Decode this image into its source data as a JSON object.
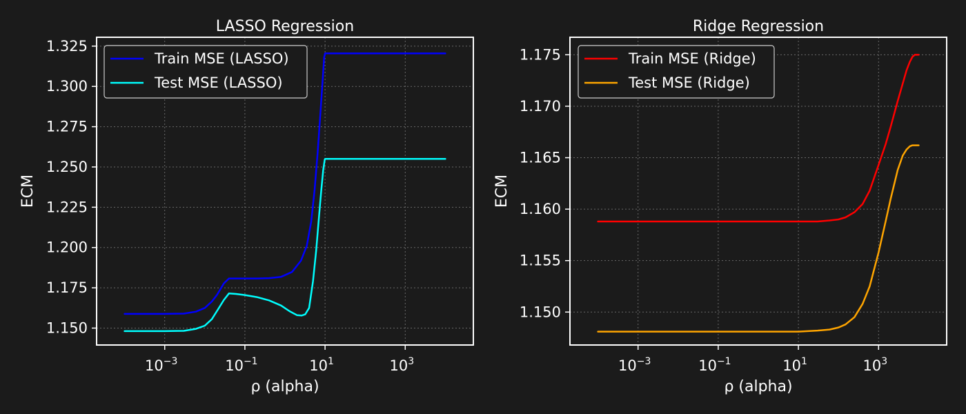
{
  "figure": {
    "background": "#1b1b1b",
    "grid_color": "#6a6a6a",
    "text_color": "#ffffff"
  },
  "chart_data": [
    {
      "id": "lasso",
      "type": "line",
      "title": "LASSO Regression",
      "xlabel": "ρ (alpha)",
      "ylabel": "ECM",
      "xscale": "log",
      "xlim": [
        2e-05,
        50000
      ],
      "ylim": [
        1.1395,
        1.3305
      ],
      "xticks": [
        {
          "value": 0.001,
          "base": "10",
          "exp": "−3"
        },
        {
          "value": 0.1,
          "base": "10",
          "exp": "−1"
        },
        {
          "value": 10,
          "base": "10",
          "exp": "1"
        },
        {
          "value": 1000,
          "base": "10",
          "exp": "3"
        }
      ],
      "yticks": [
        {
          "value": 1.15,
          "label": "1.150"
        },
        {
          "value": 1.175,
          "label": "1.175"
        },
        {
          "value": 1.2,
          "label": "1.200"
        },
        {
          "value": 1.225,
          "label": "1.225"
        },
        {
          "value": 1.25,
          "label": "1.250"
        },
        {
          "value": 1.275,
          "label": "1.275"
        },
        {
          "value": 1.3,
          "label": "1.300"
        },
        {
          "value": 1.325,
          "label": "1.325"
        }
      ],
      "grid": true,
      "legend_position": "top-left",
      "series": [
        {
          "name": "Train MSE (LASSO)",
          "color": "#0000ff",
          "x": [
            0.0001,
            0.001,
            0.003,
            0.006,
            0.01,
            0.015,
            0.02,
            0.03,
            0.04,
            0.06,
            0.1,
            0.2,
            0.4,
            0.8,
            1.5,
            2.5,
            3.5,
            4.5,
            5.5,
            6.5,
            7.5,
            8.5,
            9.5,
            10,
            100,
            1000,
            10000
          ],
          "values": [
            1.1588,
            1.1588,
            1.159,
            1.1602,
            1.1625,
            1.1665,
            1.1705,
            1.1778,
            1.1808,
            1.1808,
            1.1808,
            1.1808,
            1.181,
            1.1818,
            1.1848,
            1.1918,
            1.201,
            1.216,
            1.236,
            1.258,
            1.28,
            1.3,
            1.318,
            1.3205,
            1.3205,
            1.3205,
            1.3205
          ]
        },
        {
          "name": "Test MSE (LASSO)",
          "color": "#00ffff",
          "x": [
            0.0001,
            0.001,
            0.003,
            0.006,
            0.01,
            0.015,
            0.02,
            0.03,
            0.04,
            0.06,
            0.1,
            0.2,
            0.4,
            0.8,
            1.3,
            2,
            2.6,
            3.2,
            4,
            5,
            6,
            7,
            8,
            9,
            9.8,
            10,
            100,
            1000,
            10000
          ],
          "values": [
            1.1481,
            1.1481,
            1.1483,
            1.1495,
            1.1515,
            1.1555,
            1.1605,
            1.1675,
            1.1715,
            1.1712,
            1.1705,
            1.1692,
            1.1672,
            1.164,
            1.1605,
            1.158,
            1.1578,
            1.1585,
            1.1625,
            1.179,
            1.198,
            1.218,
            1.235,
            1.248,
            1.2545,
            1.255,
            1.255,
            1.255,
            1.255
          ]
        }
      ]
    },
    {
      "id": "ridge",
      "type": "line",
      "title": "Ridge Regression",
      "xlabel": "ρ (alpha)",
      "ylabel": "ECM",
      "xscale": "log",
      "xlim": [
        2e-05,
        50000
      ],
      "ylim": [
        1.1468,
        1.1767
      ],
      "xticks": [
        {
          "value": 0.001,
          "base": "10",
          "exp": "−3"
        },
        {
          "value": 0.1,
          "base": "10",
          "exp": "−1"
        },
        {
          "value": 10,
          "base": "10",
          "exp": "1"
        },
        {
          "value": 1000,
          "base": "10",
          "exp": "3"
        }
      ],
      "yticks": [
        {
          "value": 1.15,
          "label": "1.150"
        },
        {
          "value": 1.155,
          "label": "1.155"
        },
        {
          "value": 1.16,
          "label": "1.160"
        },
        {
          "value": 1.165,
          "label": "1.165"
        },
        {
          "value": 1.17,
          "label": "1.170"
        },
        {
          "value": 1.175,
          "label": "1.175"
        }
      ],
      "grid": true,
      "legend_position": "top-left",
      "series": [
        {
          "name": "Train MSE (Ridge)",
          "color": "#ff0000",
          "x": [
            0.0001,
            1,
            10,
            30,
            60,
            100,
            150,
            250,
            400,
            600,
            1000,
            1500,
            2000,
            3000,
            4000,
            5000,
            6000,
            7000,
            8000,
            9000,
            10000
          ],
          "values": [
            1.1588,
            1.1588,
            1.1588,
            1.1588,
            1.1589,
            1.159,
            1.1592,
            1.1597,
            1.1605,
            1.1618,
            1.1643,
            1.1663,
            1.168,
            1.1705,
            1.1722,
            1.1735,
            1.1743,
            1.1748,
            1.175,
            1.175,
            1.175
          ]
        },
        {
          "name": "Test MSE (Ridge)",
          "color": "#ffa500",
          "x": [
            0.0001,
            1,
            10,
            30,
            60,
            100,
            150,
            250,
            400,
            600,
            1000,
            1500,
            2000,
            3000,
            4000,
            5000,
            6000,
            7000,
            8000,
            9000,
            10000
          ],
          "values": [
            1.1481,
            1.1481,
            1.1481,
            1.1482,
            1.1483,
            1.1485,
            1.1488,
            1.1495,
            1.1508,
            1.1525,
            1.1558,
            1.1588,
            1.161,
            1.1638,
            1.1652,
            1.1658,
            1.1661,
            1.1662,
            1.1662,
            1.1662,
            1.1662
          ]
        }
      ]
    }
  ]
}
